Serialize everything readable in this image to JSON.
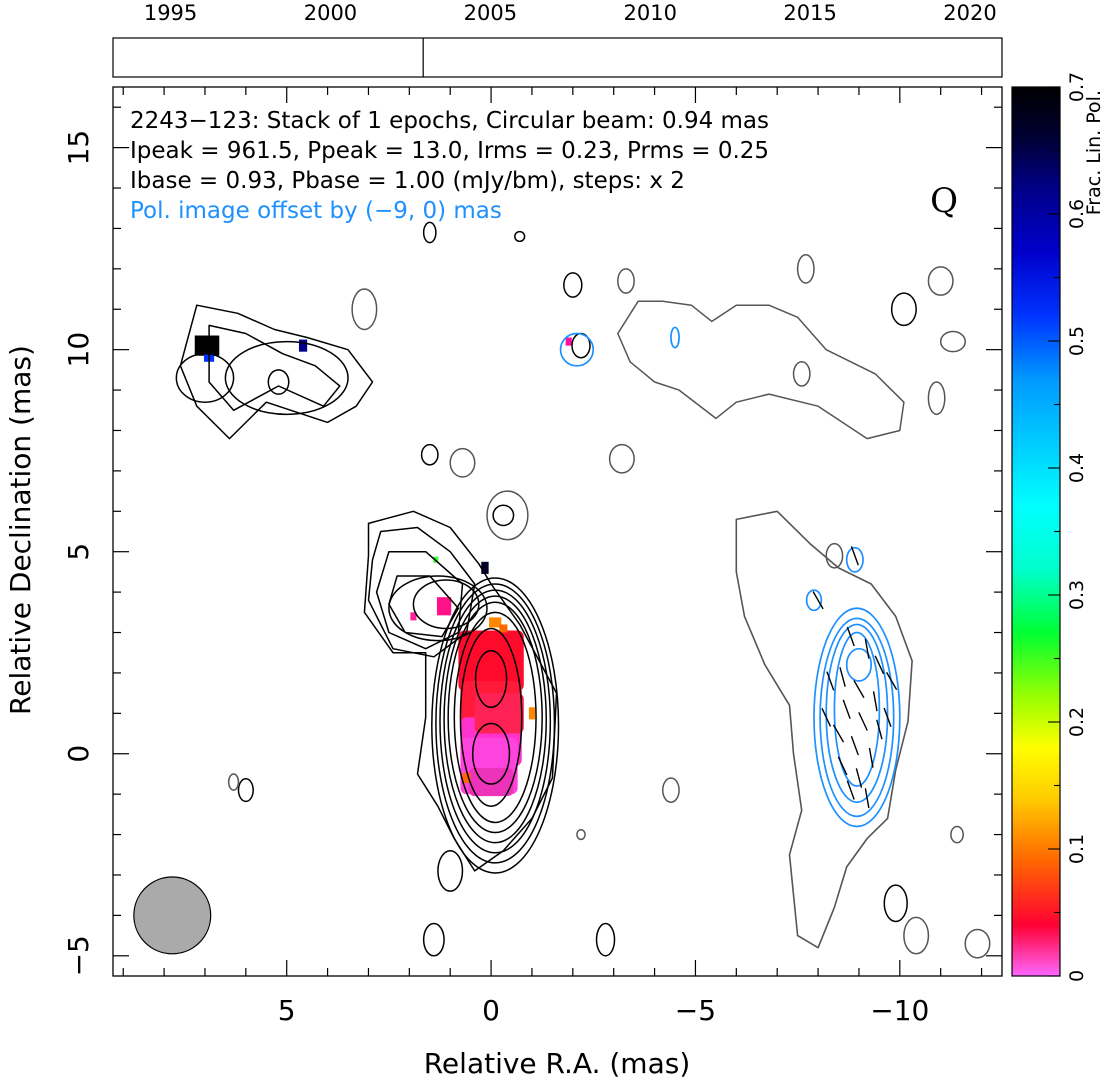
{
  "chart_data": {
    "type": "other",
    "title": "",
    "xlabel": "Relative R.A. (mas)",
    "ylabel": "Relative Declination (mas)",
    "xlim": [
      9.25,
      -12.5
    ],
    "ylim": [
      -5.5,
      16.5
    ],
    "x_ticks": [
      "5",
      "0",
      "−5",
      "−10"
    ],
    "x_tick_values": [
      5,
      0,
      -5,
      -10
    ],
    "y_ticks": [
      "−5",
      "0",
      "5",
      "10",
      "15"
    ],
    "y_tick_values": [
      -5,
      0,
      5,
      10,
      15
    ],
    "annotations": {
      "line1": "2243−123: Stack of 1 epochs, Circular beam: 0.94 mas",
      "line2": "Ipeak = 961.5, Ppeak = 13.0, Irms = 0.23, Prms = 0.25",
      "line3": "Ibase = 0.93, Pbase = 1.00 (mJy/bm), steps: x 2",
      "line4": "Pol. image offset by (−9, 0) mas",
      "quality_flag": "Q"
    },
    "offset_text_color": "#1e90ff",
    "timeline": {
      "years": [
        "1995",
        "2000",
        "2005",
        "2010",
        "2015",
        "2020"
      ],
      "year_values": [
        1995,
        2000,
        2005,
        2010,
        2015,
        2020
      ],
      "range": [
        1993.2,
        2021
      ],
      "epoch_years": [
        2002.9
      ]
    },
    "colorbar": {
      "label": "Frac. Lin. Pol.",
      "ticks": [
        "0",
        "0.1",
        "0.2",
        "0.3",
        "0.4",
        "0.5",
        "0.6",
        "0.7"
      ],
      "tick_values": [
        0,
        0.1,
        0.2,
        0.3,
        0.4,
        0.5,
        0.6,
        0.7
      ],
      "range": [
        0,
        0.7
      ],
      "stops": [
        {
          "v": 0.0,
          "c": "#ff66ff"
        },
        {
          "v": 0.04,
          "c": "#ff0033"
        },
        {
          "v": 0.09,
          "c": "#ff6600"
        },
        {
          "v": 0.14,
          "c": "#ffcc00"
        },
        {
          "v": 0.18,
          "c": "#ffff00"
        },
        {
          "v": 0.22,
          "c": "#99ff00"
        },
        {
          "v": 0.27,
          "c": "#00ff33"
        },
        {
          "v": 0.32,
          "c": "#00ffcc"
        },
        {
          "v": 0.37,
          "c": "#00ffff"
        },
        {
          "v": 0.42,
          "c": "#00ccff"
        },
        {
          "v": 0.47,
          "c": "#0099ff"
        },
        {
          "v": 0.52,
          "c": "#0033ff"
        },
        {
          "v": 0.57,
          "c": "#0000cc"
        },
        {
          "v": 0.62,
          "c": "#000088"
        },
        {
          "v": 0.66,
          "c": "#000033"
        },
        {
          "v": 0.7,
          "c": "#000000"
        }
      ]
    },
    "beam": {
      "x": 7.8,
      "y": -4.0,
      "diameter_mas": 0.94,
      "color": "#aaaaaa"
    },
    "intensity_contours": {
      "color": "#000000",
      "core_center": [
        0,
        0
      ],
      "core_contours": [
        {
          "cx": -0.1,
          "cy": 0.7,
          "rx": 1.55,
          "ry": 3.65
        },
        {
          "cx": -0.1,
          "cy": 0.75,
          "rx": 1.45,
          "ry": 3.45
        },
        {
          "cx": -0.1,
          "cy": 0.8,
          "rx": 1.35,
          "ry": 3.25
        },
        {
          "cx": -0.1,
          "cy": 0.85,
          "rx": 1.25,
          "ry": 3.05
        },
        {
          "cx": -0.1,
          "cy": 0.9,
          "rx": 1.15,
          "ry": 2.85
        },
        {
          "cx": -0.1,
          "cy": 0.9,
          "rx": 1.0,
          "ry": 2.6
        },
        {
          "cx": 0.0,
          "cy": 0.9,
          "rx": 0.75,
          "ry": 2.2
        },
        {
          "cx": 0.0,
          "cy": 1.85,
          "rx": 0.38,
          "ry": 0.7
        },
        {
          "cx": 0.0,
          "cy": 0.0,
          "rx": 0.45,
          "ry": 0.75
        }
      ],
      "knot_contours": [
        {
          "cx": 1.3,
          "cy": 3.6,
          "rx": 1.2,
          "ry": 0.8
        },
        {
          "cx": 1.1,
          "cy": 3.7,
          "rx": 0.8,
          "ry": 0.6
        }
      ],
      "blobs": [
        {
          "cx": 7.0,
          "cy": 9.3,
          "rx": 0.7,
          "ry": 0.6
        },
        {
          "cx": 5.0,
          "cy": 9.3,
          "rx": 1.5,
          "ry": 0.9
        },
        {
          "cx": 5.2,
          "cy": 9.2,
          "rx": 0.25,
          "ry": 0.3
        },
        {
          "cx": -0.3,
          "cy": 5.9,
          "rx": 0.25,
          "ry": 0.25
        },
        {
          "cx": 1.5,
          "cy": 7.4,
          "rx": 0.2,
          "ry": 0.25
        },
        {
          "cx": -2.0,
          "cy": 11.6,
          "rx": 0.22,
          "ry": 0.3
        },
        {
          "cx": -2.2,
          "cy": 10.1,
          "rx": 0.22,
          "ry": 0.3
        },
        {
          "cx": -10.1,
          "cy": 11.0,
          "rx": 0.3,
          "ry": 0.4
        },
        {
          "cx": -9.9,
          "cy": -3.7,
          "rx": 0.28,
          "ry": 0.45
        },
        {
          "cx": 1.5,
          "cy": 12.9,
          "rx": 0.15,
          "ry": 0.25
        },
        {
          "cx": -0.7,
          "cy": 12.8,
          "rx": 0.12,
          "ry": 0.12
        },
        {
          "cx": 6.0,
          "cy": -0.9,
          "rx": 0.18,
          "ry": 0.28
        },
        {
          "cx": 1.0,
          "cy": -2.9,
          "rx": 0.3,
          "ry": 0.5
        },
        {
          "cx": 1.4,
          "cy": -4.6,
          "rx": 0.25,
          "ry": 0.4
        },
        {
          "cx": -2.8,
          "cy": -4.6,
          "rx": 0.22,
          "ry": 0.4
        }
      ]
    },
    "polarization_panel": {
      "offset_mas": [
        -9,
        0
      ],
      "outer_contour_color": "#555555",
      "pol_contour_color": "#1e90ff",
      "evpa_color": "#000000",
      "evpa_ticks": [
        [
          -8.8,
          2.9,
          20
        ],
        [
          -9.2,
          2.6,
          10
        ],
        [
          -9.5,
          2.2,
          25
        ],
        [
          -8.6,
          1.9,
          15
        ],
        [
          -9.0,
          1.6,
          30
        ],
        [
          -9.4,
          1.3,
          10
        ],
        [
          -8.7,
          1.1,
          20
        ],
        [
          -9.1,
          0.8,
          25
        ],
        [
          -9.5,
          0.6,
          15
        ],
        [
          -8.5,
          0.5,
          30
        ],
        [
          -8.9,
          0.2,
          20
        ],
        [
          -9.3,
          -0.1,
          10
        ],
        [
          -8.6,
          -0.3,
          25
        ],
        [
          -9.0,
          -0.6,
          15
        ],
        [
          -8.8,
          -0.9,
          20
        ],
        [
          -9.2,
          -1.1,
          10
        ],
        [
          -8.2,
          0.9,
          25
        ],
        [
          -8.3,
          1.8,
          20
        ],
        [
          -9.8,
          1.8,
          30
        ],
        [
          -9.7,
          0.9,
          20
        ],
        [
          -8.0,
          3.8,
          30
        ],
        [
          -8.9,
          4.9,
          20
        ]
      ]
    }
  }
}
